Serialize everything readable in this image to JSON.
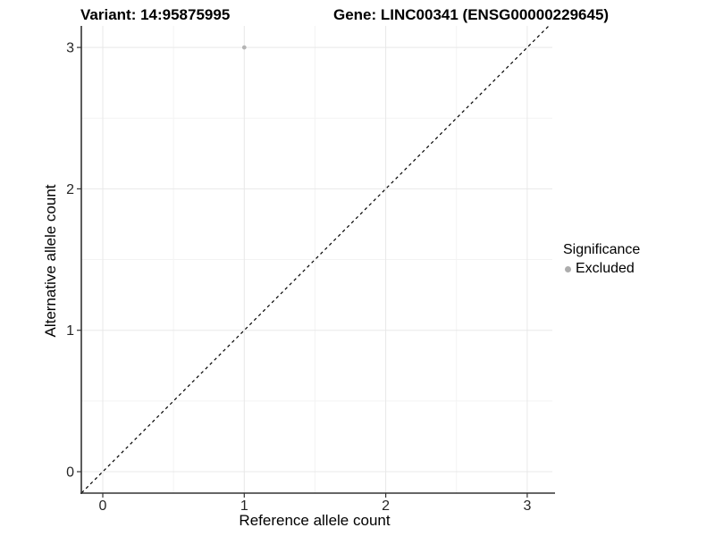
{
  "chart_data": {
    "type": "scatter",
    "title_left": "Variant: 14:95875995",
    "title_right": "Gene: LINC00341 (ENSG00000229645)",
    "xlabel": "Reference allele count",
    "ylabel": "Alternative allele count",
    "xlim": [
      -0.15,
      3.15
    ],
    "ylim": [
      -0.15,
      3.15
    ],
    "x_ticks": [
      0,
      1,
      2,
      3
    ],
    "y_ticks": [
      0,
      1,
      2,
      3
    ],
    "x_minor_ticks": [
      0.5,
      1.5,
      2.5
    ],
    "y_minor_ticks": [
      0.5,
      1.5,
      2.5
    ],
    "grid": true,
    "series": [
      {
        "name": "Excluded",
        "color": "#b5b5b5",
        "points": [
          {
            "x": 1,
            "y": 3
          }
        ]
      }
    ],
    "reference_line": {
      "style": "dashed",
      "slope": 1,
      "intercept": 0,
      "color": "#000000"
    },
    "legend": {
      "title": "Significance",
      "position": "right",
      "items": [
        {
          "label": "Excluded",
          "color": "#adadad"
        }
      ]
    }
  },
  "colors": {
    "background": "#ffffff",
    "axis_line": "#333333",
    "tick_text": "#262626",
    "grid_major": "#e8e8e8",
    "grid_minor": "#f3f3f3",
    "point": "#b5b5b5",
    "diagonal": "#000000"
  }
}
